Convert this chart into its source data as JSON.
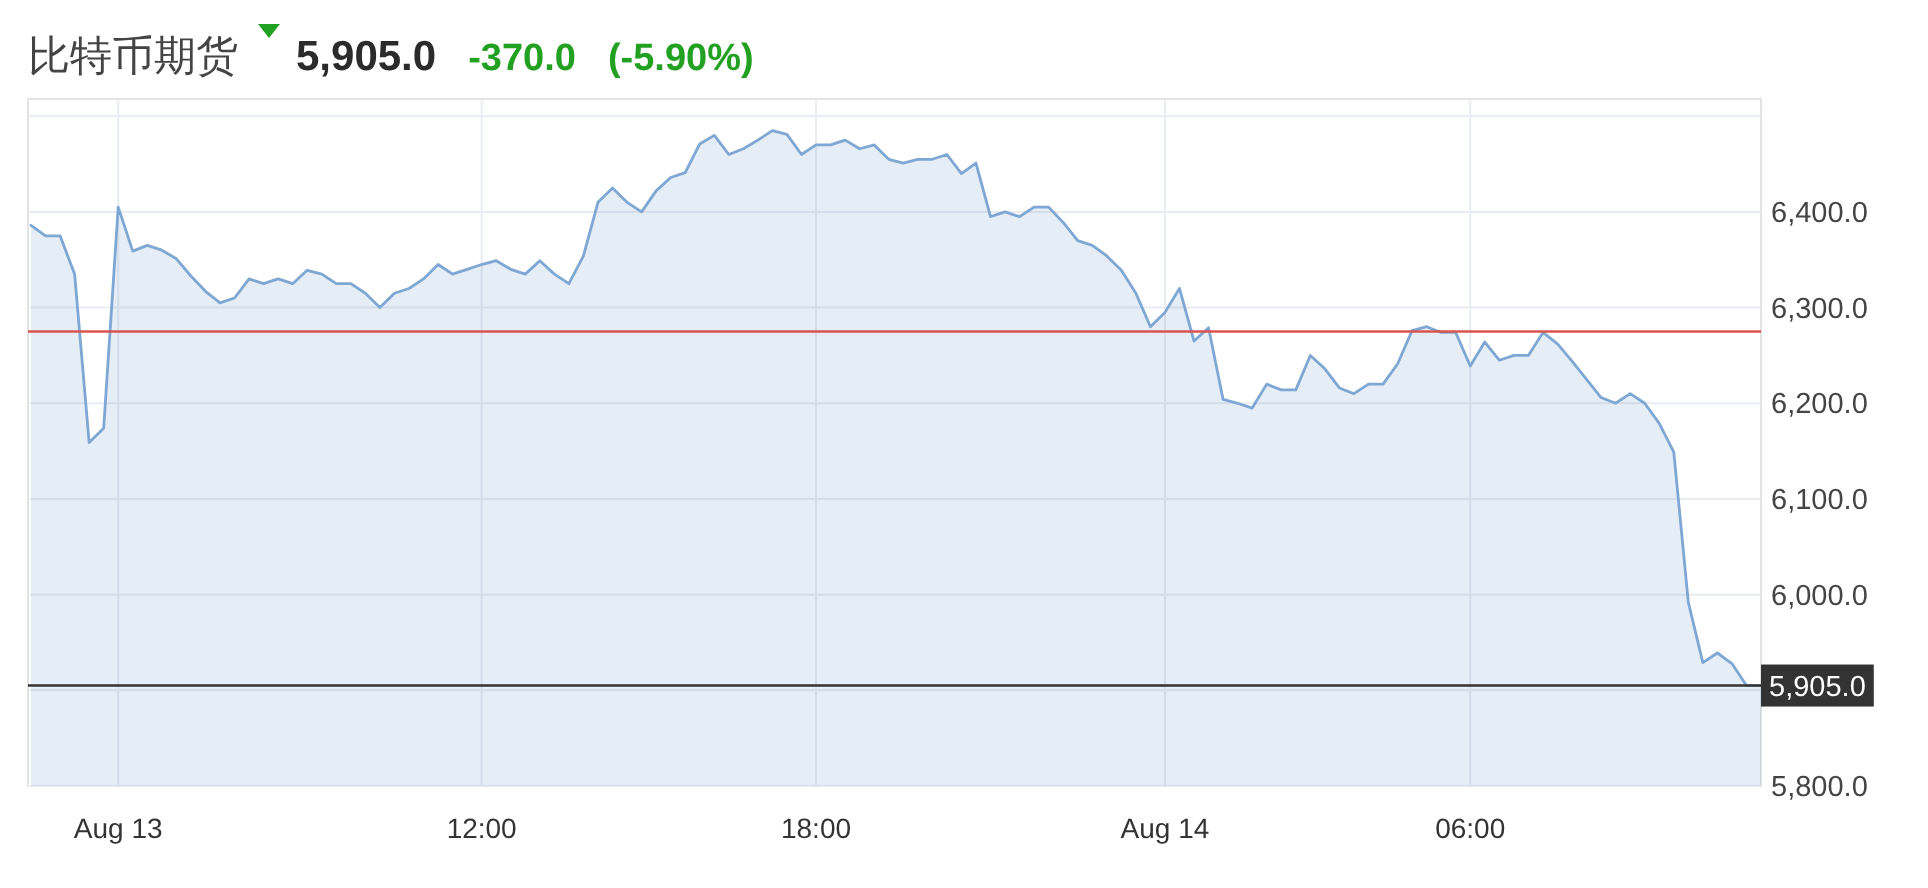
{
  "chart_data": {
    "type": "area",
    "title": "比特币期货",
    "annotations": [
      "5,905.0",
      "-370.0",
      "(-5.90%)"
    ],
    "categories": [
      null,
      null,
      null,
      null,
      null,
      null,
      "Aug 13",
      null,
      null,
      null,
      null,
      null,
      null,
      null,
      null,
      null,
      null,
      null,
      null,
      null,
      null,
      null,
      null,
      null,
      null,
      null,
      null,
      null,
      null,
      null,
      null,
      "12:00",
      null,
      null,
      null,
      null,
      null,
      null,
      null,
      null,
      null,
      null,
      null,
      null,
      null,
      null,
      null,
      null,
      null,
      null,
      null,
      null,
      null,
      null,
      "18:00",
      null,
      null,
      null,
      null,
      null,
      null,
      null,
      null,
      null,
      null,
      null,
      null,
      null,
      null,
      null,
      null,
      null,
      null,
      null,
      null,
      null,
      null,
      null,
      "Aug 14",
      null,
      null,
      null,
      null,
      null,
      null,
      null,
      null,
      null,
      null,
      null,
      null,
      null,
      null,
      null,
      null,
      null,
      null,
      null,
      null,
      "06:00",
      null,
      null,
      null,
      null,
      null,
      null,
      null,
      null,
      null,
      null,
      null,
      null,
      null,
      null,
      null,
      null,
      null,
      null,
      null,
      null
    ],
    "values": [
      6386,
      6375,
      6375,
      6335,
      6159,
      6174,
      6405,
      6359,
      6365,
      6360,
      6351,
      6333,
      6317,
      6305,
      6310,
      6330,
      6325,
      6330,
      6325,
      6339,
      6335,
      6325,
      6325,
      6315,
      6300,
      6315,
      6320,
      6330,
      6345,
      6335,
      6340,
      6345,
      6349,
      6340,
      6335,
      6349,
      6335,
      6325,
      6354,
      6410,
      6425,
      6410,
      6400,
      6422,
      6436,
      6441,
      6471,
      6480,
      6460,
      6466,
      6475,
      6485,
      6481,
      6460,
      6470,
      6470,
      6475,
      6466,
      6470,
      6455,
      6451,
      6455,
      6455,
      6460,
      6440,
      6451,
      6395,
      6400,
      6395,
      6405,
      6405,
      6389,
      6370,
      6365,
      6354,
      6339,
      6315,
      6280,
      6295,
      6320,
      6265,
      6279,
      6204,
      6200,
      6195,
      6220,
      6214,
      6214,
      6250,
      6236,
      6216,
      6210,
      6220,
      6220,
      6241,
      6276,
      6280,
      6274,
      6274,
      6239,
      6264,
      6245,
      6250,
      6250,
      6274,
      6262,
      6244,
      6225,
      6206,
      6200,
      6210,
      6200,
      6179,
      6149,
      5992,
      5929,
      5939,
      5928,
      5905,
      5905
    ],
    "color": "#7ea7d3",
    "ylim": [
      5800,
      6518
    ],
    "yticks": [
      {
        "value": 5800,
        "label": "5,800.0"
      },
      {
        "value": 5900,
        "label": null
      },
      {
        "value": 6000,
        "label": "6,000.0"
      },
      {
        "value": 6100,
        "label": "6,100.0"
      },
      {
        "value": 6200,
        "label": "6,200.0"
      },
      {
        "value": 6300,
        "label": "6,300.0"
      },
      {
        "value": 6400,
        "label": "6,400.0"
      },
      {
        "value": 6500,
        "label": null
      }
    ],
    "ref_lines": [
      {
        "axis": "y",
        "value": 6275,
        "color": "#d9534f"
      },
      {
        "axis": "y",
        "value": 5905,
        "label": "5,905.0",
        "color": "#333333"
      }
    ],
    "grid": true
  }
}
